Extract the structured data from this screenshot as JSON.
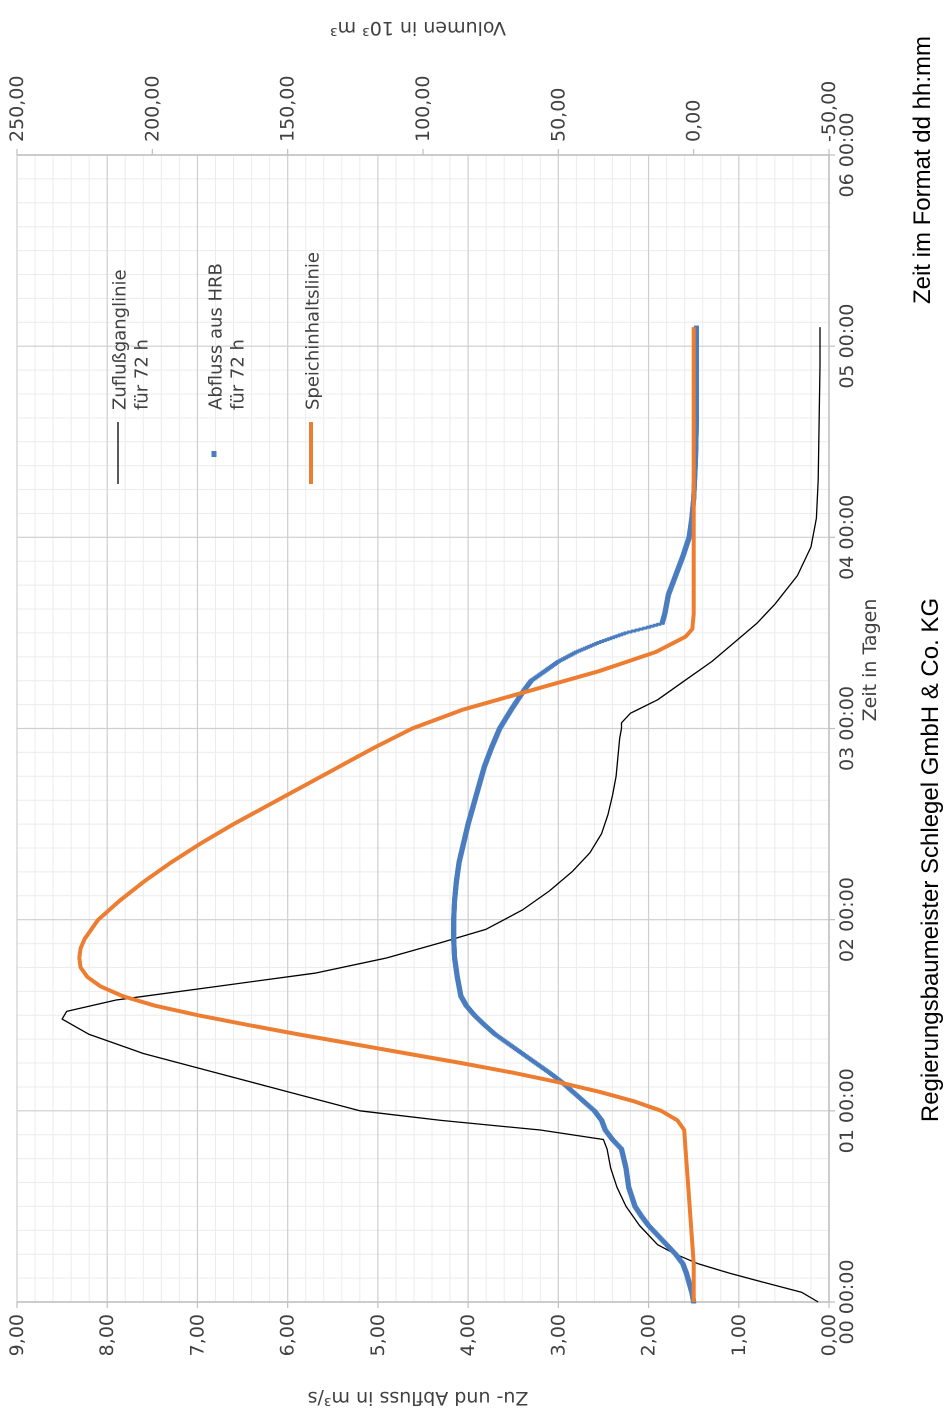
{
  "chart_data": {
    "type": "line",
    "orientation": "rotated 90° clockwise",
    "xlabel": "Zeit in Tagen",
    "x_unit_note": "Zeit im Format dd hh:mm",
    "x_range_days": [
      0,
      6
    ],
    "x_ticks": [
      "00 00:00",
      "01 00:00",
      "02 00:00",
      "03 00:00",
      "04 00:00",
      "05 00:00",
      "06 00:00"
    ],
    "ylabel_left": "Zu- und Abfluss in m³/s",
    "ylim_left": [
      0,
      9
    ],
    "y_ticks_left": [
      "0,00",
      "1,00",
      "2,00",
      "3,00",
      "4,00",
      "5,00",
      "6,00",
      "7,00",
      "8,00",
      "9,00"
    ],
    "ylabel_right": "Volumen in 10³ m³",
    "ylim_right": [
      -50,
      250
    ],
    "y_ticks_right": [
      "-50,00",
      "0,00",
      "50,00",
      "100,00",
      "150,00",
      "200,00",
      "250,00"
    ],
    "grid": true,
    "legend_position": "top-right",
    "credit": "Regierungsbaumeister Schlegel GmbH & Co. KG",
    "series": [
      {
        "name": "Zuflußganglinie für 72 h",
        "legend_lines": [
          "Zuflußganglinie",
          "für 72 h"
        ],
        "axis": "left",
        "style": "line",
        "color": "#000000",
        "points": [
          [
            0.0,
            0.12
          ],
          [
            0.05,
            0.3
          ],
          [
            0.1,
            0.7
          ],
          [
            0.15,
            1.1
          ],
          [
            0.2,
            1.45
          ],
          [
            0.25,
            1.7
          ],
          [
            0.3,
            1.9
          ],
          [
            0.4,
            2.1
          ],
          [
            0.5,
            2.25
          ],
          [
            0.6,
            2.35
          ],
          [
            0.7,
            2.42
          ],
          [
            0.8,
            2.46
          ],
          [
            0.85,
            2.5
          ],
          [
            0.9,
            3.2
          ],
          [
            0.95,
            4.3
          ],
          [
            1.0,
            5.2
          ],
          [
            1.1,
            6.0
          ],
          [
            1.2,
            6.8
          ],
          [
            1.3,
            7.6
          ],
          [
            1.4,
            8.2
          ],
          [
            1.48,
            8.5
          ],
          [
            1.52,
            8.45
          ],
          [
            1.58,
            7.9
          ],
          [
            1.65,
            6.8
          ],
          [
            1.72,
            5.7
          ],
          [
            1.8,
            4.9
          ],
          [
            1.88,
            4.3
          ],
          [
            1.95,
            3.8
          ],
          [
            2.05,
            3.4
          ],
          [
            2.15,
            3.1
          ],
          [
            2.25,
            2.85
          ],
          [
            2.35,
            2.65
          ],
          [
            2.45,
            2.52
          ],
          [
            2.55,
            2.45
          ],
          [
            2.65,
            2.4
          ],
          [
            2.75,
            2.36
          ],
          [
            2.85,
            2.34
          ],
          [
            2.95,
            2.32
          ],
          [
            3.0,
            2.3
          ],
          [
            3.03,
            2.3
          ],
          [
            3.08,
            2.2
          ],
          [
            3.15,
            1.9
          ],
          [
            3.25,
            1.6
          ],
          [
            3.35,
            1.3
          ],
          [
            3.45,
            1.05
          ],
          [
            3.55,
            0.8
          ],
          [
            3.65,
            0.6
          ],
          [
            3.8,
            0.35
          ],
          [
            3.95,
            0.2
          ],
          [
            4.1,
            0.14
          ],
          [
            4.3,
            0.12
          ],
          [
            4.6,
            0.11
          ],
          [
            4.9,
            0.1
          ],
          [
            5.1,
            0.1
          ]
        ]
      },
      {
        "name": "Abfluss aus HRB für 72 h",
        "legend_lines": [
          "Abfluss aus HRB",
          "für 72 h"
        ],
        "axis": "left",
        "style": "markers",
        "color": "#4a7dbf",
        "points": [
          [
            0.0,
            1.5
          ],
          [
            0.05,
            1.52
          ],
          [
            0.1,
            1.55
          ],
          [
            0.15,
            1.58
          ],
          [
            0.2,
            1.62
          ],
          [
            0.25,
            1.7
          ],
          [
            0.3,
            1.8
          ],
          [
            0.35,
            1.9
          ],
          [
            0.4,
            2.0
          ],
          [
            0.45,
            2.08
          ],
          [
            0.5,
            2.15
          ],
          [
            0.6,
            2.22
          ],
          [
            0.7,
            2.25
          ],
          [
            0.8,
            2.3
          ],
          [
            0.85,
            2.4
          ],
          [
            0.9,
            2.48
          ],
          [
            0.95,
            2.52
          ],
          [
            1.0,
            2.6
          ],
          [
            1.05,
            2.72
          ],
          [
            1.1,
            2.84
          ],
          [
            1.15,
            2.96
          ],
          [
            1.2,
            3.1
          ],
          [
            1.25,
            3.25
          ],
          [
            1.3,
            3.4
          ],
          [
            1.35,
            3.55
          ],
          [
            1.4,
            3.7
          ],
          [
            1.45,
            3.82
          ],
          [
            1.5,
            3.93
          ],
          [
            1.55,
            4.02
          ],
          [
            1.6,
            4.08
          ],
          [
            1.7,
            4.12
          ],
          [
            1.8,
            4.15
          ],
          [
            1.9,
            4.16
          ],
          [
            2.0,
            4.16
          ],
          [
            2.1,
            4.15
          ],
          [
            2.2,
            4.13
          ],
          [
            2.3,
            4.1
          ],
          [
            2.4,
            4.05
          ],
          [
            2.5,
            4.0
          ],
          [
            2.6,
            3.94
          ],
          [
            2.7,
            3.88
          ],
          [
            2.8,
            3.82
          ],
          [
            2.9,
            3.74
          ],
          [
            3.0,
            3.65
          ],
          [
            3.1,
            3.52
          ],
          [
            3.2,
            3.38
          ],
          [
            3.25,
            3.3
          ],
          [
            3.3,
            3.15
          ],
          [
            3.35,
            3.0
          ],
          [
            3.4,
            2.8
          ],
          [
            3.45,
            2.55
          ],
          [
            3.5,
            2.25
          ],
          [
            3.53,
            2.0
          ],
          [
            3.55,
            1.85
          ],
          [
            3.6,
            1.82
          ],
          [
            3.7,
            1.78
          ],
          [
            3.8,
            1.7
          ],
          [
            3.9,
            1.62
          ],
          [
            4.0,
            1.55
          ],
          [
            4.1,
            1.52
          ],
          [
            4.2,
            1.5
          ],
          [
            4.4,
            1.48
          ],
          [
            4.6,
            1.47
          ],
          [
            4.8,
            1.47
          ],
          [
            5.0,
            1.47
          ],
          [
            5.1,
            1.47
          ]
        ]
      },
      {
        "name": "Speichinhaltslinie",
        "legend_lines": [
          "Speichinhaltslinie"
        ],
        "axis": "right",
        "style": "line",
        "color": "#ed7d31",
        "points": [
          [
            0.0,
            0.0
          ],
          [
            0.2,
            0.0
          ],
          [
            0.4,
            1.0
          ],
          [
            0.6,
            2.0
          ],
          [
            0.8,
            3.0
          ],
          [
            0.9,
            3.5
          ],
          [
            0.95,
            6.0
          ],
          [
            1.0,
            12.0
          ],
          [
            1.05,
            22.0
          ],
          [
            1.1,
            35.0
          ],
          [
            1.15,
            50.0
          ],
          [
            1.2,
            67.0
          ],
          [
            1.25,
            86.0
          ],
          [
            1.3,
            106.0
          ],
          [
            1.35,
            126.0
          ],
          [
            1.4,
            146.0
          ],
          [
            1.45,
            165.0
          ],
          [
            1.5,
            183.0
          ],
          [
            1.55,
            199.0
          ],
          [
            1.6,
            211.0
          ],
          [
            1.65,
            219.0
          ],
          [
            1.7,
            224.0
          ],
          [
            1.75,
            226.5
          ],
          [
            1.8,
            227.0
          ],
          [
            1.85,
            226.5
          ],
          [
            1.9,
            225.0
          ],
          [
            2.0,
            220.0
          ],
          [
            2.1,
            212.0
          ],
          [
            2.2,
            203.0
          ],
          [
            2.3,
            193.0
          ],
          [
            2.4,
            182.0
          ],
          [
            2.5,
            170.0
          ],
          [
            2.6,
            157.0
          ],
          [
            2.7,
            144.0
          ],
          [
            2.8,
            131.0
          ],
          [
            2.9,
            118.0
          ],
          [
            3.0,
            104.0
          ],
          [
            3.1,
            85.0
          ],
          [
            3.2,
            60.0
          ],
          [
            3.3,
            35.0
          ],
          [
            3.4,
            14.0
          ],
          [
            3.48,
            3.0
          ],
          [
            3.52,
            0.5
          ],
          [
            3.6,
            0.0
          ],
          [
            4.0,
            0.0
          ],
          [
            4.5,
            0.0
          ],
          [
            5.1,
            0.0
          ]
        ]
      }
    ]
  }
}
